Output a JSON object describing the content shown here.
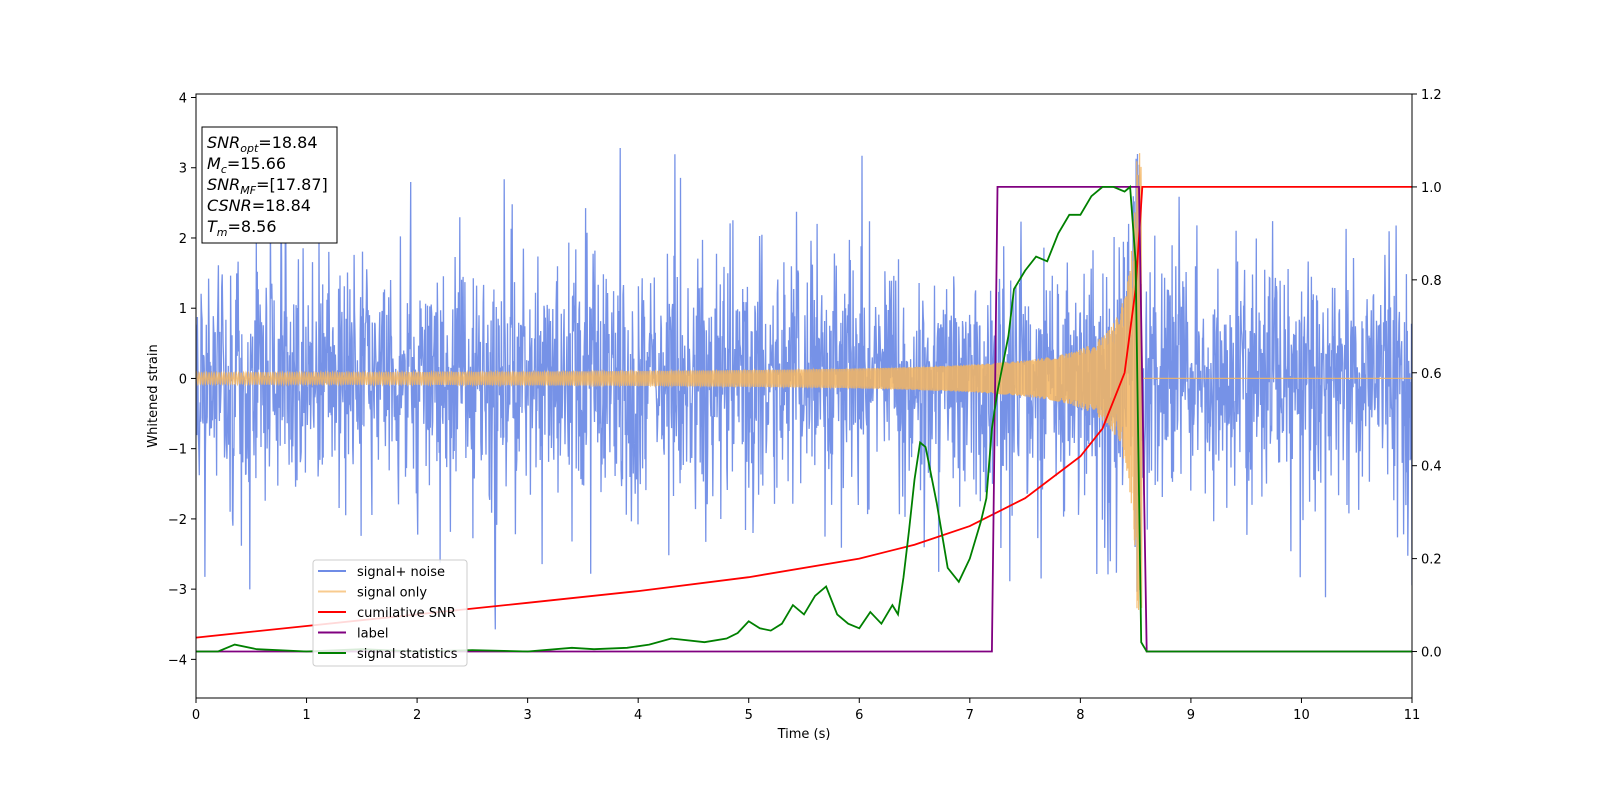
{
  "chart_data": {
    "type": "line",
    "xlabel": "Time (s)",
    "ylabel": "Whitened strain",
    "xlim": [
      0,
      11
    ],
    "ylim": [
      -4.55,
      4.05
    ],
    "ylim_right": [
      -0.1,
      1.2
    ],
    "xticks": [
      "0",
      "1",
      "2",
      "3",
      "4",
      "5",
      "6",
      "7",
      "8",
      "9",
      "10",
      "11"
    ],
    "yticks": [
      "4",
      "3",
      "2",
      "1",
      "0",
      "−1",
      "−2",
      "−3",
      "−4"
    ],
    "yticks_right": [
      "1.2",
      "1.0",
      "0.8",
      "0.6",
      "0.4",
      "0.2",
      "0.0"
    ],
    "grid": false,
    "legend_position": "lower-left",
    "annotation_box": {
      "lines": [
        {
          "symbol": "SNR",
          "sub": "opt",
          "value": "=18.84"
        },
        {
          "symbol": "M",
          "sub": "c",
          "value": "=15.66"
        },
        {
          "symbol": "SNR",
          "sub": "MF",
          "value": "=[17.87]"
        },
        {
          "symbol": "CSNR",
          "sub": "",
          "value": "=18.84"
        },
        {
          "symbol": "T",
          "sub": "m",
          "value": "=8.56"
        }
      ]
    },
    "series": [
      {
        "name": "signal+ noise",
        "axis": "left",
        "color": "#6f8ce6",
        "kind": "noise",
        "std": 0.82,
        "peak_time": 8.56
      },
      {
        "name": "signal only",
        "axis": "left",
        "color": "#f5b560",
        "kind": "chirp",
        "t_merge": 8.56,
        "amplitude_start": 0.05,
        "amplitude_peak": 3.3
      },
      {
        "name": "cumilative SNR",
        "axis": "right",
        "x": [
          0,
          1,
          2,
          3,
          4,
          5,
          6,
          6.5,
          7,
          7.5,
          8,
          8.2,
          8.4,
          8.5,
          8.56,
          11
        ],
        "y": [
          0.03,
          0.055,
          0.08,
          0.105,
          0.13,
          0.16,
          0.2,
          0.23,
          0.27,
          0.33,
          0.42,
          0.48,
          0.6,
          0.78,
          1.0,
          1.0
        ],
        "color": "#ff0000"
      },
      {
        "name": "label",
        "axis": "right",
        "x": [
          0,
          7.2,
          7.25,
          8.53,
          8.6,
          11
        ],
        "y": [
          0.0,
          0.0,
          1.0,
          1.0,
          0.0,
          0.0
        ],
        "color": "#800080"
      },
      {
        "name": "signal statistics",
        "axis": "right",
        "x": [
          0,
          0.2,
          0.35,
          0.55,
          1.0,
          1.5,
          2.0,
          2.5,
          3.0,
          3.4,
          3.6,
          3.9,
          4.1,
          4.3,
          4.6,
          4.8,
          4.9,
          5.0,
          5.1,
          5.2,
          5.3,
          5.4,
          5.5,
          5.6,
          5.7,
          5.8,
          5.9,
          6.0,
          6.1,
          6.2,
          6.3,
          6.35,
          6.4,
          6.45,
          6.5,
          6.55,
          6.6,
          6.7,
          6.8,
          6.9,
          7.0,
          7.1,
          7.15,
          7.2,
          7.25,
          7.3,
          7.35,
          7.4,
          7.5,
          7.6,
          7.7,
          7.8,
          7.9,
          8.0,
          8.1,
          8.2,
          8.3,
          8.4,
          8.45,
          8.5,
          8.55,
          8.6,
          8.7,
          11
        ],
        "y": [
          0.0,
          0.0,
          0.015,
          0.005,
          0.0,
          0.005,
          0.0,
          0.003,
          0.0,
          0.008,
          0.005,
          0.008,
          0.015,
          0.028,
          0.02,
          0.028,
          0.04,
          0.065,
          0.05,
          0.045,
          0.06,
          0.1,
          0.08,
          0.12,
          0.14,
          0.08,
          0.06,
          0.05,
          0.085,
          0.06,
          0.1,
          0.08,
          0.16,
          0.26,
          0.37,
          0.45,
          0.44,
          0.32,
          0.18,
          0.15,
          0.2,
          0.28,
          0.33,
          0.48,
          0.56,
          0.62,
          0.68,
          0.78,
          0.82,
          0.85,
          0.84,
          0.9,
          0.94,
          0.94,
          0.98,
          1.0,
          1.0,
          0.99,
          1.0,
          0.84,
          0.02,
          0.0,
          0.0,
          0.0
        ],
        "color": "#008000"
      }
    ]
  }
}
